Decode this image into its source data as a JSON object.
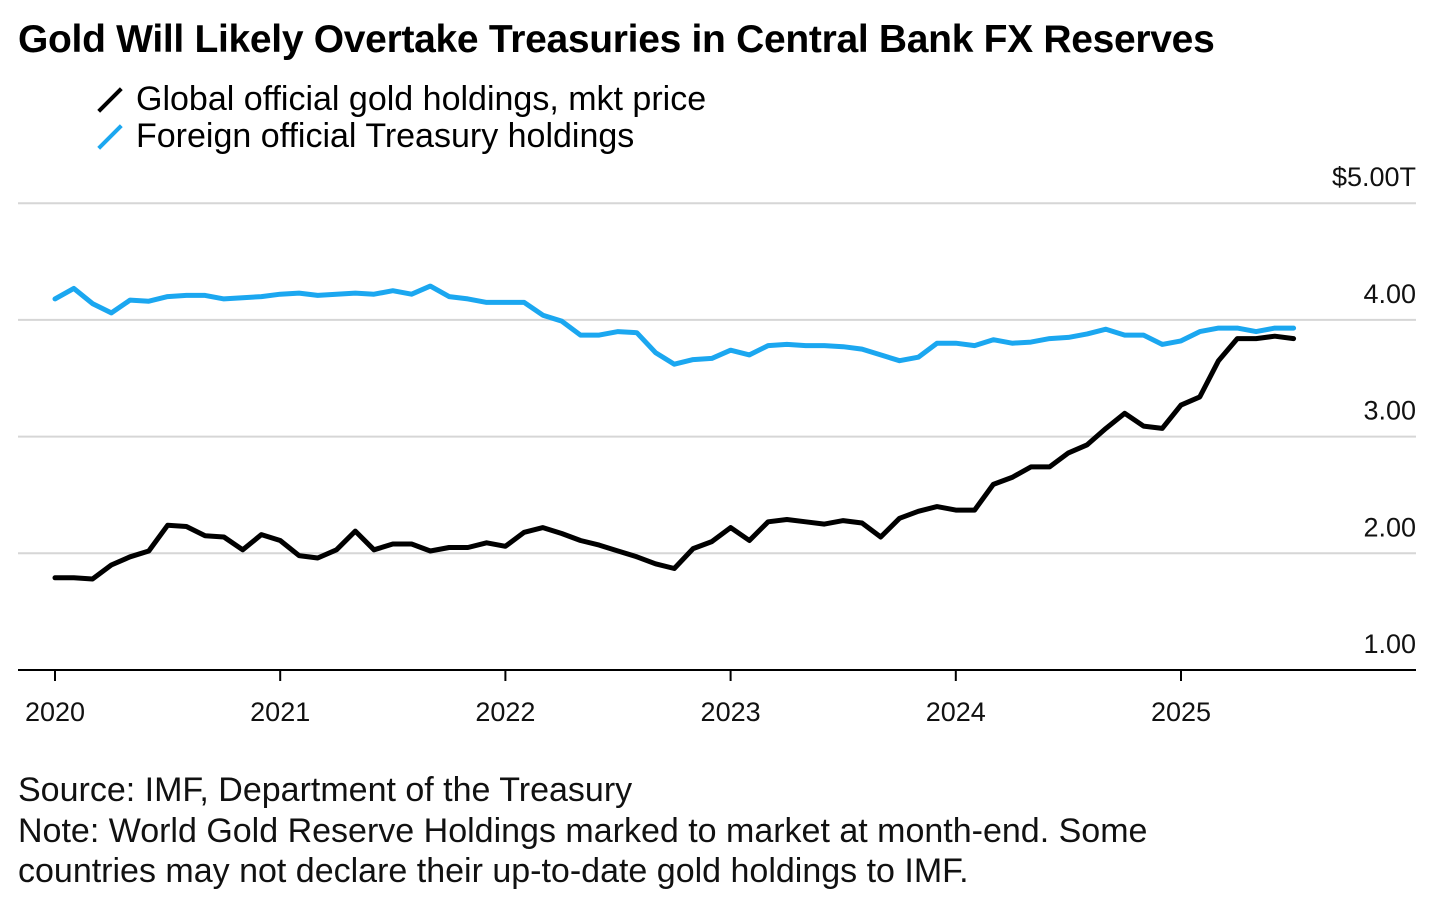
{
  "title": "Gold Will Likely Overtake Treasuries in Central Bank FX Reserves",
  "footer": {
    "source": "Source: IMF, Department of the Treasury",
    "note_line1": "Note: World Gold Reserve Holdings marked to market at month-end. Some",
    "note_line2": "countries may not declare their up-to-date gold holdings to IMF."
  },
  "chart_data": {
    "type": "line",
    "title": "Gold Will Likely Overtake Treasuries in Central Bank FX Reserves",
    "xlabel": "",
    "ylabel": "",
    "x_start": "2020-01",
    "x_frequency": "monthly",
    "xlim": [
      2020.0,
      2026.0
    ],
    "ylim": [
      1.0,
      5.0
    ],
    "grid": true,
    "legend_placement": "top-left",
    "y_ticks": [
      {
        "value": 5,
        "label": "$5.00T"
      },
      {
        "value": 4,
        "label": "4.00"
      },
      {
        "value": 3,
        "label": "3.00"
      },
      {
        "value": 2,
        "label": "2.00"
      },
      {
        "value": 1,
        "label": "1.00"
      }
    ],
    "x_ticks": [
      {
        "value": 2020,
        "label": "2020"
      },
      {
        "value": 2021,
        "label": "2021"
      },
      {
        "value": 2022,
        "label": "2022"
      },
      {
        "value": 2023,
        "label": "2023"
      },
      {
        "value": 2024,
        "label": "2024"
      },
      {
        "value": 2025,
        "label": "2025"
      }
    ],
    "series": [
      {
        "name": "Global official gold holdings, mkt price",
        "color": "#000000",
        "values": [
          1.79,
          1.79,
          1.78,
          1.9,
          1.97,
          2.02,
          2.24,
          2.23,
          2.15,
          2.14,
          2.03,
          2.16,
          2.11,
          1.98,
          1.96,
          2.03,
          2.19,
          2.03,
          2.08,
          2.08,
          2.02,
          2.05,
          2.05,
          2.09,
          2.06,
          2.18,
          2.22,
          2.17,
          2.11,
          2.07,
          2.02,
          1.97,
          1.91,
          1.87,
          2.04,
          2.1,
          2.22,
          2.11,
          2.27,
          2.29,
          2.27,
          2.25,
          2.28,
          2.26,
          2.14,
          2.3,
          2.36,
          2.4,
          2.37,
          2.37,
          2.59,
          2.65,
          2.74,
          2.74,
          2.86,
          2.93,
          3.07,
          3.2,
          3.09,
          3.07,
          3.27,
          3.34,
          3.65,
          3.84,
          3.84,
          3.86,
          3.84
        ]
      },
      {
        "name": "Foreign official Treasury holdings",
        "color": "#1ba7f0",
        "values": [
          4.18,
          4.27,
          4.14,
          4.06,
          4.17,
          4.16,
          4.2,
          4.21,
          4.21,
          4.18,
          4.19,
          4.2,
          4.22,
          4.23,
          4.21,
          4.22,
          4.23,
          4.22,
          4.25,
          4.22,
          4.29,
          4.2,
          4.18,
          4.15,
          4.15,
          4.15,
          4.04,
          3.99,
          3.87,
          3.87,
          3.9,
          3.89,
          3.72,
          3.62,
          3.66,
          3.67,
          3.74,
          3.7,
          3.78,
          3.79,
          3.78,
          3.78,
          3.77,
          3.75,
          3.7,
          3.65,
          3.68,
          3.8,
          3.8,
          3.78,
          3.83,
          3.8,
          3.81,
          3.84,
          3.85,
          3.88,
          3.92,
          3.87,
          3.87,
          3.79,
          3.82,
          3.9,
          3.93,
          3.93,
          3.9,
          3.93,
          3.93
        ]
      }
    ]
  }
}
